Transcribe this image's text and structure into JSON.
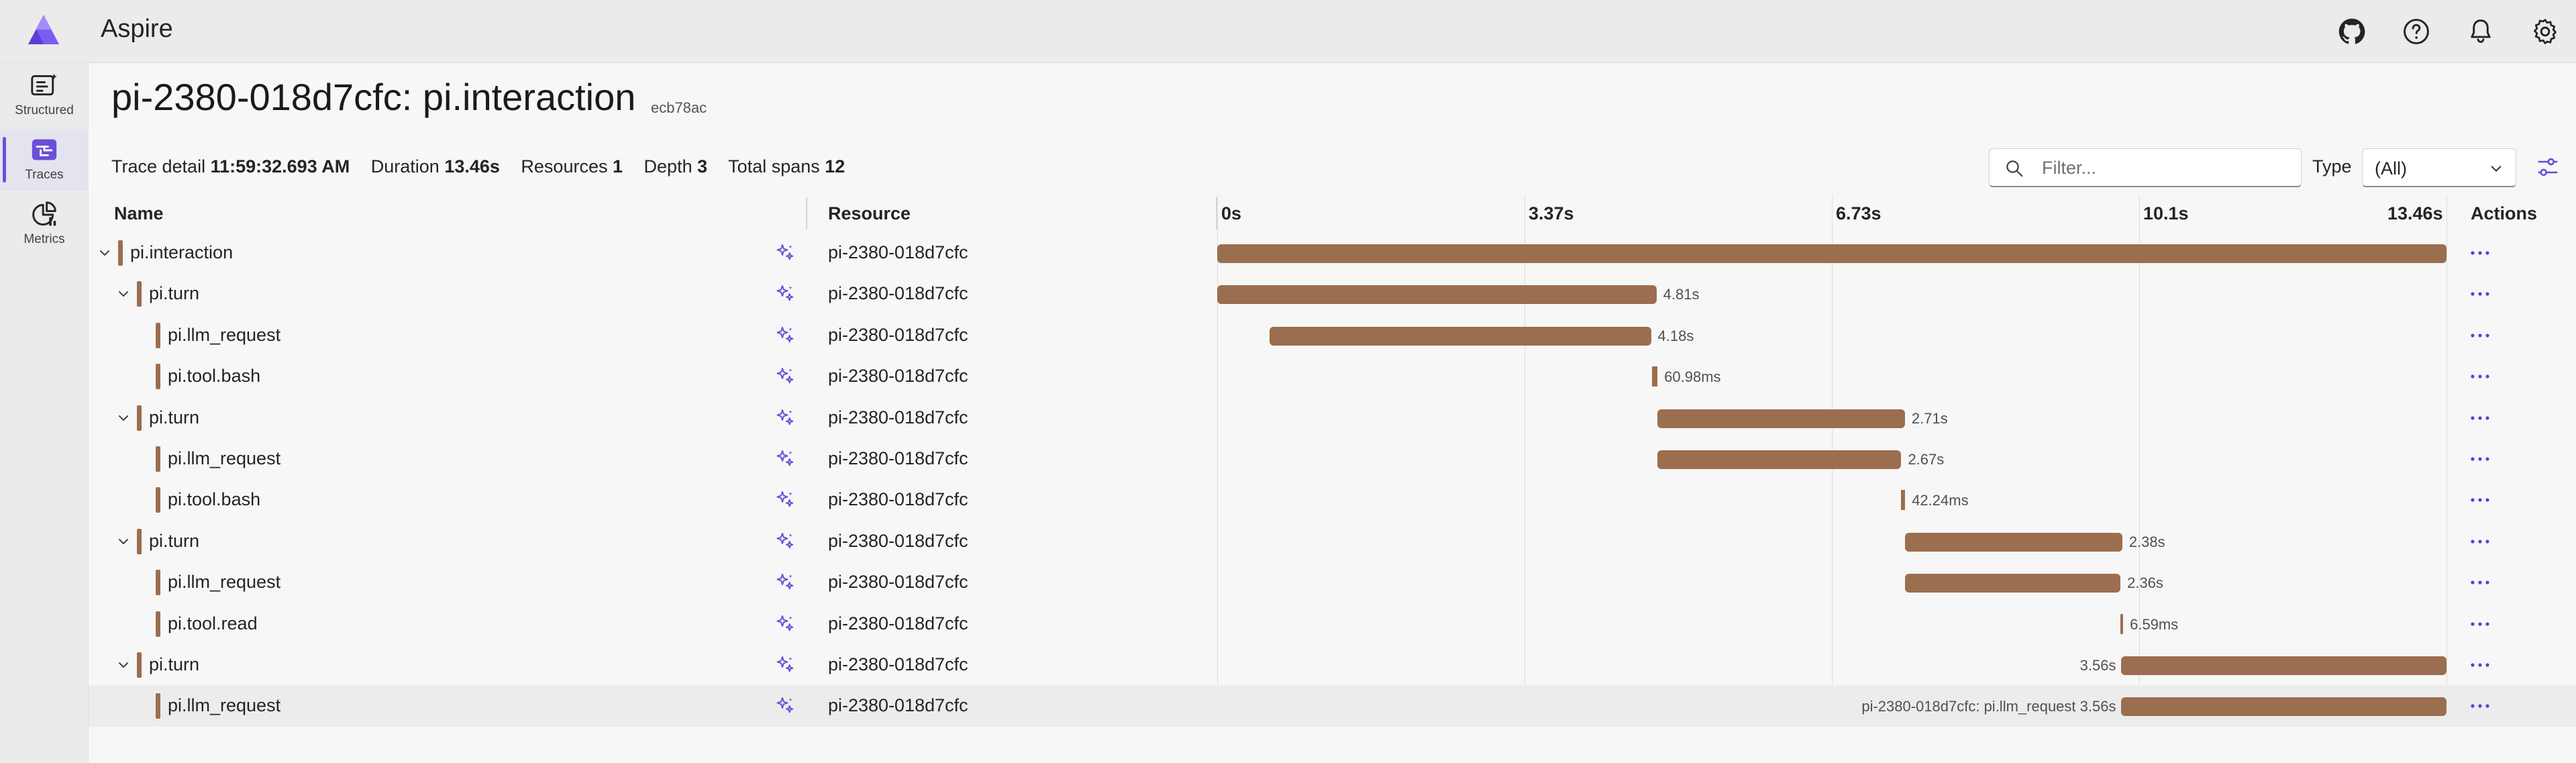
{
  "header": {
    "app_title": "Aspire"
  },
  "sidebar": {
    "items": [
      {
        "label": "Structured",
        "icon": "structured-logs-icon",
        "active": false
      },
      {
        "label": "Traces",
        "icon": "traces-icon",
        "active": true
      },
      {
        "label": "Metrics",
        "icon": "metrics-icon",
        "active": false
      }
    ]
  },
  "page": {
    "title": "pi-2380-018d7cfc: pi.interaction",
    "trace_id": "ecb78ac"
  },
  "summary": {
    "trace_detail_label": "Trace detail",
    "trace_detail_value": "11:59:32.693 AM",
    "duration_label": "Duration",
    "duration_value": "13.46s",
    "resources_label": "Resources",
    "resources_value": "1",
    "depth_label": "Depth",
    "depth_value": "3",
    "total_spans_label": "Total spans",
    "total_spans_value": "12"
  },
  "toolbar": {
    "filter_placeholder": "Filter...",
    "filter_value": "",
    "type_label": "Type",
    "type_value": "(All)"
  },
  "table": {
    "columns": {
      "name": "Name",
      "resource": "Resource",
      "actions": "Actions"
    },
    "ticks": [
      "0s",
      "3.37s",
      "6.73s",
      "10.1s",
      "13.46s"
    ],
    "total_duration_s": 13.46,
    "bar_color": "#9b6e4f",
    "rows": [
      {
        "name": "pi.interaction",
        "depth": 0,
        "expandable": true,
        "resource": "pi-2380-018d7cfc",
        "start_s": 0.0,
        "duration_s": 13.46,
        "duration_label": ""
      },
      {
        "name": "pi.turn",
        "depth": 1,
        "expandable": true,
        "resource": "pi-2380-018d7cfc",
        "start_s": 0.0,
        "duration_s": 4.81,
        "duration_label": "4.81s"
      },
      {
        "name": "pi.llm_request",
        "depth": 2,
        "expandable": false,
        "resource": "pi-2380-018d7cfc",
        "start_s": 0.57,
        "duration_s": 4.18,
        "duration_label": "4.18s"
      },
      {
        "name": "pi.tool.bash",
        "depth": 2,
        "expandable": false,
        "resource": "pi-2380-018d7cfc",
        "start_s": 4.76,
        "duration_s": 0.06098,
        "duration_label": "60.98ms"
      },
      {
        "name": "pi.turn",
        "depth": 1,
        "expandable": true,
        "resource": "pi-2380-018d7cfc",
        "start_s": 4.82,
        "duration_s": 2.71,
        "duration_label": "2.71s"
      },
      {
        "name": "pi.llm_request",
        "depth": 2,
        "expandable": false,
        "resource": "pi-2380-018d7cfc",
        "start_s": 4.82,
        "duration_s": 2.67,
        "duration_label": "2.67s"
      },
      {
        "name": "pi.tool.bash",
        "depth": 2,
        "expandable": false,
        "resource": "pi-2380-018d7cfc",
        "start_s": 7.49,
        "duration_s": 0.04224,
        "duration_label": "42.24ms"
      },
      {
        "name": "pi.turn",
        "depth": 1,
        "expandable": true,
        "resource": "pi-2380-018d7cfc",
        "start_s": 7.53,
        "duration_s": 2.38,
        "duration_label": "2.38s"
      },
      {
        "name": "pi.llm_request",
        "depth": 2,
        "expandable": false,
        "resource": "pi-2380-018d7cfc",
        "start_s": 7.53,
        "duration_s": 2.36,
        "duration_label": "2.36s"
      },
      {
        "name": "pi.tool.read",
        "depth": 2,
        "expandable": false,
        "resource": "pi-2380-018d7cfc",
        "start_s": 9.89,
        "duration_s": 0.00659,
        "duration_label": "6.59ms"
      },
      {
        "name": "pi.turn",
        "depth": 1,
        "expandable": true,
        "resource": "pi-2380-018d7cfc",
        "start_s": 9.9,
        "duration_s": 3.56,
        "duration_label": "3.56s"
      },
      {
        "name": "pi.llm_request",
        "depth": 2,
        "expandable": false,
        "resource": "pi-2380-018d7cfc",
        "start_s": 9.9,
        "duration_s": 3.56,
        "duration_label": "pi-2380-018d7cfc: pi.llm_request 3.56s",
        "highlighted": true
      }
    ]
  }
}
